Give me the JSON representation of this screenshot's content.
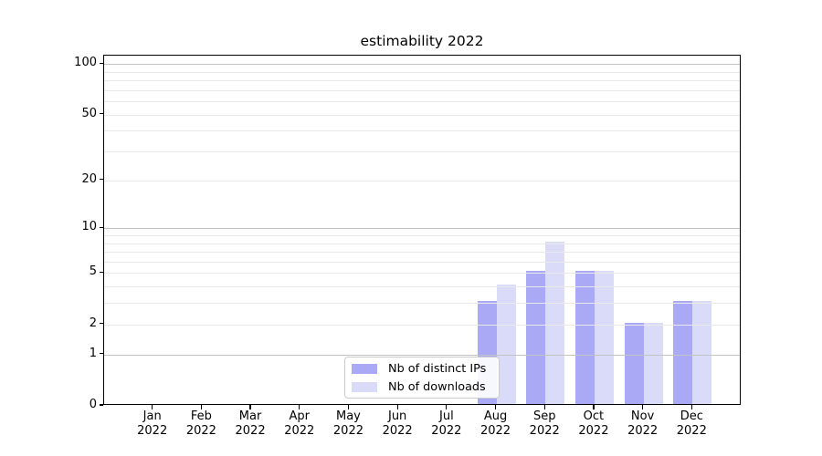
{
  "title": "estimability 2022",
  "chart_data": {
    "type": "bar",
    "title": "estimability 2022",
    "categories": [
      "Jan 2022",
      "Feb 2022",
      "Mar 2022",
      "Apr 2022",
      "May 2022",
      "Jun 2022",
      "Jul 2022",
      "Aug 2022",
      "Sep 2022",
      "Oct 2022",
      "Nov 2022",
      "Dec 2022"
    ],
    "x_tick_line1": [
      "Jan",
      "Feb",
      "Mar",
      "Apr",
      "May",
      "Jun",
      "Jul",
      "Aug",
      "Sep",
      "Oct",
      "Nov",
      "Dec"
    ],
    "x_tick_line2": "2022",
    "series": [
      {
        "name": "Nb of distinct IPs",
        "color": "#a9a9f5",
        "values": [
          0,
          0,
          0,
          0,
          0,
          0,
          0,
          3,
          5,
          5,
          2,
          3
        ]
      },
      {
        "name": "Nb of downloads",
        "color": "#dadaf9",
        "values": [
          0,
          0,
          0,
          0,
          0,
          0,
          0,
          4,
          8,
          5,
          2,
          3
        ]
      }
    ],
    "xlabel": "",
    "ylabel": "",
    "yscale": "log1p",
    "ylim": [
      0,
      112
    ],
    "yticks_labeled": [
      0,
      1,
      2,
      5,
      10,
      20,
      50,
      100
    ],
    "ygrid_major": [
      1,
      10,
      100
    ],
    "ygrid_minor": [
      2,
      3,
      4,
      5,
      6,
      7,
      8,
      9,
      20,
      30,
      40,
      50,
      60,
      70,
      80,
      90
    ],
    "grid": true,
    "legend_position": "inside-lower-center"
  },
  "colors": {
    "background": "#ffffff",
    "grid_major": "#c3c3c3",
    "grid_minor": "#e9e9e9",
    "spine": "#000000",
    "text": "#000000",
    "legend_border": "#cccccc"
  }
}
